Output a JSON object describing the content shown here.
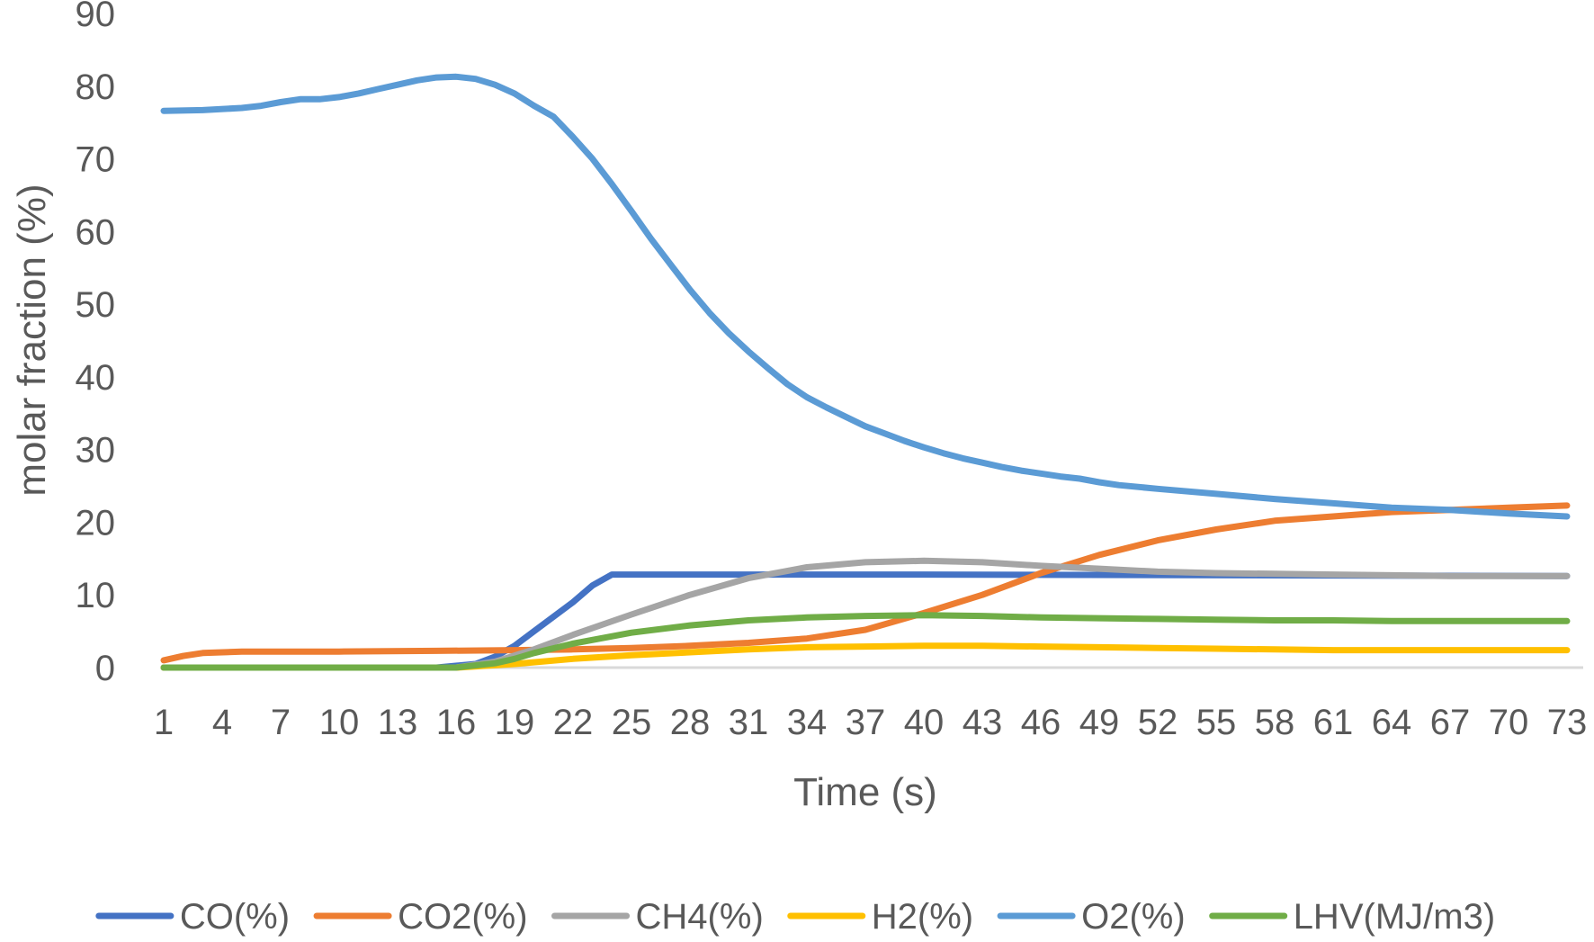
{
  "chart_data": {
    "type": "line",
    "xlabel": "Time (s)",
    "ylabel": "molar fraction  (%)",
    "ylim": [
      0,
      90
    ],
    "yticks": [
      0,
      10,
      20,
      30,
      40,
      50,
      60,
      70,
      80,
      90
    ],
    "xlim": [
      1,
      73
    ],
    "xticks": [
      1,
      4,
      7,
      10,
      13,
      16,
      19,
      22,
      25,
      28,
      31,
      34,
      37,
      40,
      43,
      46,
      49,
      52,
      55,
      58,
      61,
      64,
      67,
      70,
      73
    ],
    "grid": false,
    "legend_position": "bottom",
    "series": [
      {
        "name": "CO(%)",
        "color": "#4472C4",
        "points": [
          [
            1,
            0
          ],
          [
            15,
            0
          ],
          [
            17,
            0.5
          ],
          [
            18,
            1.5
          ],
          [
            19,
            3
          ],
          [
            20,
            5
          ],
          [
            22,
            9
          ],
          [
            23,
            11.3
          ],
          [
            24,
            12.8
          ],
          [
            40,
            12.8
          ],
          [
            73,
            12.6
          ]
        ]
      },
      {
        "name": "CO2(%)",
        "color": "#ED7D31",
        "points": [
          [
            1,
            1
          ],
          [
            2,
            1.6
          ],
          [
            3,
            2
          ],
          [
            5,
            2.2
          ],
          [
            10,
            2.2
          ],
          [
            15,
            2.3
          ],
          [
            19,
            2.4
          ],
          [
            22,
            2.5
          ],
          [
            25,
            2.7
          ],
          [
            28,
            3
          ],
          [
            31,
            3.4
          ],
          [
            34,
            4
          ],
          [
            37,
            5.2
          ],
          [
            40,
            7.5
          ],
          [
            43,
            10
          ],
          [
            46,
            13
          ],
          [
            49,
            15.5
          ],
          [
            52,
            17.5
          ],
          [
            55,
            19
          ],
          [
            58,
            20.2
          ],
          [
            61,
            20.8
          ],
          [
            64,
            21.4
          ],
          [
            67,
            21.7
          ],
          [
            70,
            22
          ],
          [
            73,
            22.3
          ]
        ]
      },
      {
        "name": "CH4(%)",
        "color": "#A5A5A5",
        "points": [
          [
            1,
            0
          ],
          [
            16,
            0
          ],
          [
            18,
            0.8
          ],
          [
            20,
            2.5
          ],
          [
            22,
            4.5
          ],
          [
            25,
            7.3
          ],
          [
            28,
            10
          ],
          [
            31,
            12.3
          ],
          [
            34,
            13.8
          ],
          [
            37,
            14.5
          ],
          [
            40,
            14.7
          ],
          [
            43,
            14.5
          ],
          [
            46,
            14
          ],
          [
            49,
            13.6
          ],
          [
            52,
            13.2
          ],
          [
            55,
            13
          ],
          [
            58,
            12.9
          ],
          [
            61,
            12.8
          ],
          [
            64,
            12.7
          ],
          [
            67,
            12.6
          ],
          [
            70,
            12.6
          ],
          [
            73,
            12.6
          ]
        ]
      },
      {
        "name": "H2(%)",
        "color": "#FFC000",
        "points": [
          [
            1,
            0
          ],
          [
            16,
            0
          ],
          [
            19,
            0.5
          ],
          [
            22,
            1.2
          ],
          [
            25,
            1.7
          ],
          [
            28,
            2.1
          ],
          [
            31,
            2.5
          ],
          [
            34,
            2.8
          ],
          [
            37,
            2.9
          ],
          [
            40,
            3
          ],
          [
            43,
            3
          ],
          [
            46,
            2.9
          ],
          [
            49,
            2.8
          ],
          [
            52,
            2.7
          ],
          [
            55,
            2.6
          ],
          [
            58,
            2.5
          ],
          [
            61,
            2.4
          ],
          [
            64,
            2.4
          ],
          [
            67,
            2.4
          ],
          [
            70,
            2.4
          ],
          [
            73,
            2.4
          ]
        ]
      },
      {
        "name": "O2(%)",
        "color": "#5B9BD5",
        "points": [
          [
            1,
            76.6
          ],
          [
            3,
            76.7
          ],
          [
            5,
            77
          ],
          [
            6,
            77.3
          ],
          [
            7,
            77.8
          ],
          [
            8,
            78.2
          ],
          [
            9,
            78.2
          ],
          [
            10,
            78.5
          ],
          [
            11,
            79
          ],
          [
            12,
            79.6
          ],
          [
            13,
            80.2
          ],
          [
            14,
            80.8
          ],
          [
            15,
            81.2
          ],
          [
            16,
            81.3
          ],
          [
            17,
            81
          ],
          [
            18,
            80.2
          ],
          [
            19,
            79
          ],
          [
            20,
            77.3
          ],
          [
            21,
            75.8
          ],
          [
            22,
            73
          ],
          [
            23,
            70
          ],
          [
            24,
            66.5
          ],
          [
            25,
            62.8
          ],
          [
            26,
            59
          ],
          [
            27,
            55.5
          ],
          [
            28,
            52
          ],
          [
            29,
            48.8
          ],
          [
            30,
            46
          ],
          [
            31,
            43.5
          ],
          [
            32,
            41.2
          ],
          [
            33,
            39
          ],
          [
            34,
            37.2
          ],
          [
            35,
            35.8
          ],
          [
            36,
            34.5
          ],
          [
            37,
            33.2
          ],
          [
            38,
            32.2
          ],
          [
            39,
            31.2
          ],
          [
            40,
            30.3
          ],
          [
            41,
            29.5
          ],
          [
            42,
            28.8
          ],
          [
            43,
            28.2
          ],
          [
            44,
            27.6
          ],
          [
            45,
            27.1
          ],
          [
            46,
            26.7
          ],
          [
            47,
            26.3
          ],
          [
            48,
            26
          ],
          [
            49,
            25.5
          ],
          [
            50,
            25.1
          ],
          [
            52,
            24.6
          ],
          [
            55,
            23.9
          ],
          [
            58,
            23.2
          ],
          [
            61,
            22.6
          ],
          [
            64,
            22
          ],
          [
            67,
            21.7
          ],
          [
            70,
            21.2
          ],
          [
            73,
            20.8
          ]
        ]
      },
      {
        "name": "LHV(MJ/m3)",
        "color": "#70AD47",
        "points": [
          [
            1,
            0
          ],
          [
            16,
            0
          ],
          [
            18,
            0.6
          ],
          [
            19,
            1.2
          ],
          [
            20,
            2
          ],
          [
            22,
            3.3
          ],
          [
            25,
            4.8
          ],
          [
            28,
            5.8
          ],
          [
            31,
            6.5
          ],
          [
            34,
            6.9
          ],
          [
            37,
            7.1
          ],
          [
            40,
            7.2
          ],
          [
            43,
            7.1
          ],
          [
            46,
            6.9
          ],
          [
            49,
            6.8
          ],
          [
            52,
            6.7
          ],
          [
            55,
            6.6
          ],
          [
            58,
            6.5
          ],
          [
            61,
            6.5
          ],
          [
            64,
            6.4
          ],
          [
            67,
            6.4
          ],
          [
            70,
            6.4
          ],
          [
            73,
            6.4
          ]
        ]
      }
    ]
  }
}
